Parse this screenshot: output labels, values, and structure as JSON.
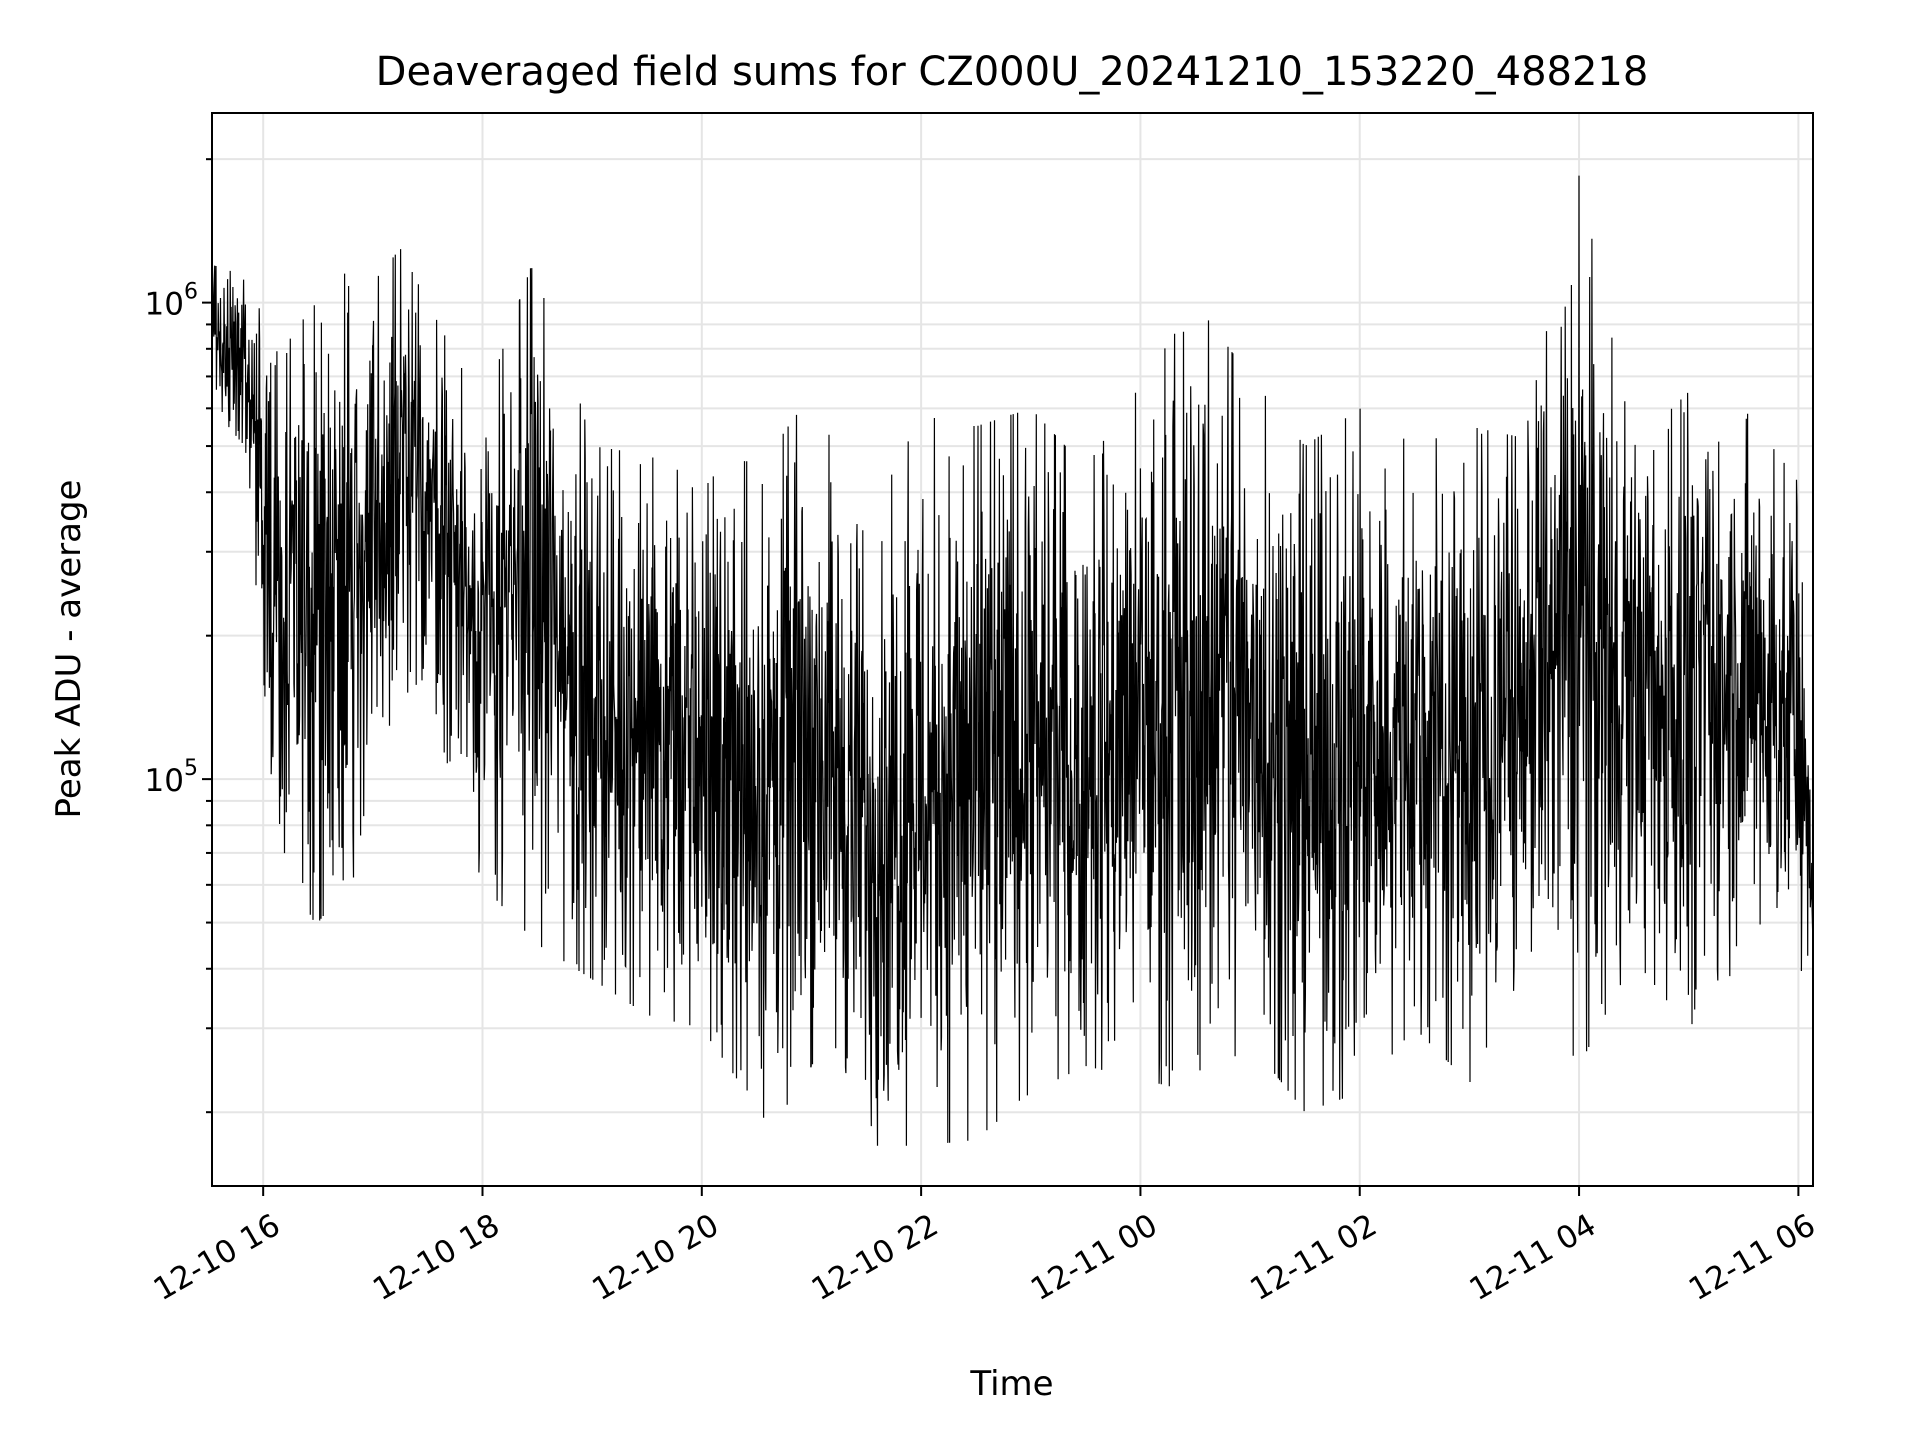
{
  "chart_data": {
    "type": "line",
    "title": "Deaveraged field sums for CZ000U_20241210_153220_488218",
    "xlabel": "Time",
    "ylabel": "Peak ADU - average",
    "yscale": "log",
    "grid": true,
    "line_color": "#000000",
    "grid_color": "#e5e5e5",
    "x_range": [
      "2024-12-10 15:32",
      "2024-12-11 06:08"
    ],
    "ylim": [
      14000,
      2500000
    ],
    "x_ticks": [
      {
        "t": "2024-12-10 16:00",
        "label": "12-10 16"
      },
      {
        "t": "2024-12-10 18:00",
        "label": "12-10 18"
      },
      {
        "t": "2024-12-10 20:00",
        "label": "12-10 20"
      },
      {
        "t": "2024-12-10 22:00",
        "label": "12-10 22"
      },
      {
        "t": "2024-12-11 00:00",
        "label": "12-11 00"
      },
      {
        "t": "2024-12-11 02:00",
        "label": "12-11 02"
      },
      {
        "t": "2024-12-11 04:00",
        "label": "12-11 04"
      },
      {
        "t": "2024-12-11 06:00",
        "label": "12-11 06"
      }
    ],
    "y_ticks": [
      {
        "value": 100000,
        "base": "10",
        "exp": "5"
      },
      {
        "value": 1000000,
        "base": "10",
        "exp": "6"
      }
    ],
    "envelope": [
      {
        "t": "2024-12-10 15:32",
        "upper": 1200000,
        "lower": 600000
      },
      {
        "t": "2024-12-10 15:50",
        "upper": 1150000,
        "lower": 500000
      },
      {
        "t": "2024-12-10 16:10",
        "upper": 750000,
        "lower": 55000
      },
      {
        "t": "2024-12-10 16:30",
        "upper": 1200000,
        "lower": 50000
      },
      {
        "t": "2024-12-10 17:00",
        "upper": 1100000,
        "lower": 70000
      },
      {
        "t": "2024-12-10 17:15",
        "upper": 1300000,
        "lower": 120000
      },
      {
        "t": "2024-12-10 17:30",
        "upper": 1000000,
        "lower": 150000
      },
      {
        "t": "2024-12-10 18:00",
        "upper": 600000,
        "lower": 60000
      },
      {
        "t": "2024-12-10 18:30",
        "upper": 1300000,
        "lower": 45000
      },
      {
        "t": "2024-12-10 19:00",
        "upper": 500000,
        "lower": 38000
      },
      {
        "t": "2024-12-10 19:30",
        "upper": 480000,
        "lower": 32000
      },
      {
        "t": "2024-12-10 20:00",
        "upper": 420000,
        "lower": 30000
      },
      {
        "t": "2024-12-10 20:40",
        "upper": 500000,
        "lower": 18000
      },
      {
        "t": "2024-12-10 21:00",
        "upper": 650000,
        "lower": 25000
      },
      {
        "t": "2024-12-10 21:30",
        "upper": 340000,
        "lower": 17000
      },
      {
        "t": "2024-12-10 22:00",
        "upper": 580000,
        "lower": 17000
      },
      {
        "t": "2024-12-10 22:30",
        "upper": 550000,
        "lower": 17500
      },
      {
        "t": "2024-12-10 23:00",
        "upper": 600000,
        "lower": 22000
      },
      {
        "t": "2024-12-10 23:30",
        "upper": 450000,
        "lower": 25000
      },
      {
        "t": "2024-12-11 00:30",
        "upper": 1000000,
        "lower": 22000
      },
      {
        "t": "2024-12-11 01:00",
        "upper": 700000,
        "lower": 28000
      },
      {
        "t": "2024-12-11 01:30",
        "upper": 500000,
        "lower": 20000
      },
      {
        "t": "2024-12-11 02:00",
        "upper": 600000,
        "lower": 22000
      },
      {
        "t": "2024-12-11 02:30",
        "upper": 500000,
        "lower": 30000
      },
      {
        "t": "2024-12-11 03:00",
        "upper": 550000,
        "lower": 23000
      },
      {
        "t": "2024-12-11 03:30",
        "upper": 520000,
        "lower": 40000
      },
      {
        "t": "2024-12-11 04:00",
        "upper": 1850000,
        "lower": 25000
      },
      {
        "t": "2024-12-11 04:30",
        "upper": 500000,
        "lower": 42000
      },
      {
        "t": "2024-12-11 05:00",
        "upper": 650000,
        "lower": 30000
      },
      {
        "t": "2024-12-11 05:30",
        "upper": 600000,
        "lower": 42000
      },
      {
        "t": "2024-12-11 06:00",
        "upper": 420000,
        "lower": 40000
      },
      {
        "t": "2024-12-11 06:08",
        "upper": 70000,
        "lower": 38000
      }
    ]
  }
}
